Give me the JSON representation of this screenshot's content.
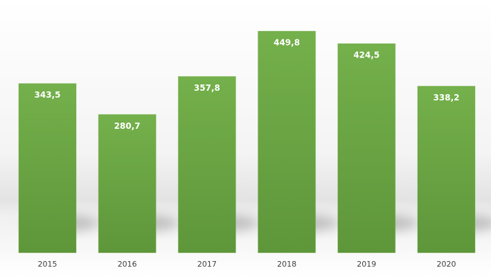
{
  "chart_data": {
    "type": "bar",
    "categories": [
      "2015",
      "2016",
      "2017",
      "2018",
      "2019",
      "2020"
    ],
    "values": [
      343.5,
      280.7,
      357.8,
      449.8,
      424.5,
      338.2
    ],
    "value_labels": [
      "343,5",
      "280,7",
      "357,8",
      "449,8",
      "424,5",
      "338,2"
    ],
    "color": "#70ad47"
  }
}
